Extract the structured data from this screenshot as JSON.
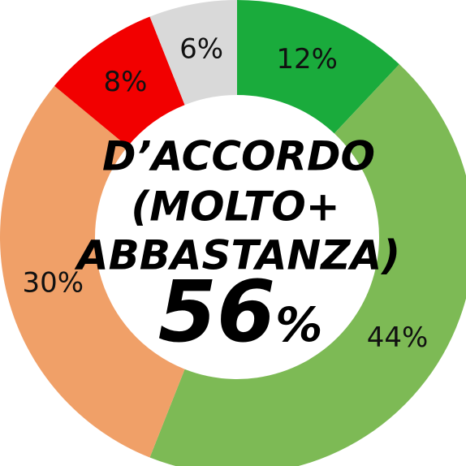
{
  "chart_data": {
    "type": "donut",
    "categories": [
      null,
      null,
      null,
      null,
      null
    ],
    "values": [
      12,
      44,
      30,
      8,
      6
    ],
    "value_labels": [
      "12%",
      "44%",
      "30%",
      "8%",
      "6%"
    ],
    "colors": [
      "#1aab3c",
      "#7dba55",
      "#f0a068",
      "#f20000",
      "#d9d9d9"
    ],
    "center_lines": [
      "D’ACCORDO",
      "(MOLTO+",
      "ABBASTANZA)"
    ],
    "center_number": "56",
    "center_unit": "%"
  }
}
